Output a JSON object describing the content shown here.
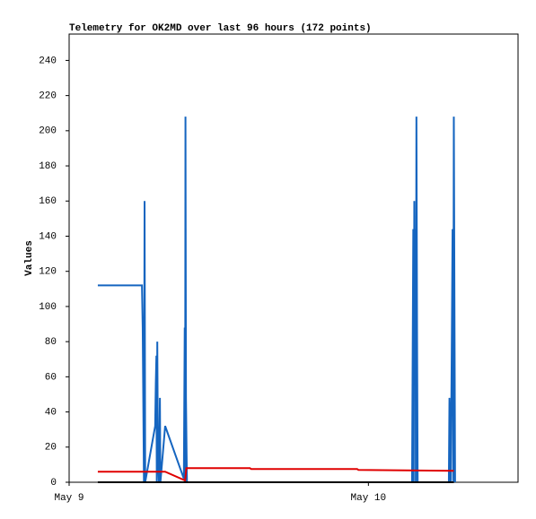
{
  "chart_data": {
    "type": "line",
    "title": "Telemetry for OK2MD over last 96 hours (172 points)",
    "y_label": "Values",
    "xlim": [
      0,
      36
    ],
    "xticks": [
      {
        "value": 0,
        "label": "May 9"
      },
      {
        "value": 24,
        "label": "May 10"
      }
    ],
    "ylim": [
      0,
      255
    ],
    "yticks": [
      0,
      20,
      40,
      60,
      80,
      100,
      120,
      140,
      160,
      180,
      200,
      220,
      240
    ],
    "grid": false,
    "series": [
      {
        "color": "#1565c0",
        "x": [
          2.3,
          5.84,
          5.9,
          6.0,
          6.05,
          6.1,
          6.9,
          6.95,
          7.0,
          7.03,
          7.07,
          7.12,
          7.2,
          7.28,
          7.32,
          7.7,
          9.2,
          9.27,
          9.3,
          9.33,
          9.37,
          9.42,
          9.45,
          null,
          27.5,
          27.55,
          27.6,
          27.63,
          27.68,
          27.72,
          27.78,
          27.8,
          27.85,
          27.9,
          27.95,
          null,
          30.45,
          30.5,
          30.55,
          30.6,
          30.68,
          30.75,
          30.8,
          30.85,
          30.9,
          30.95
        ],
        "values": [
          112,
          112,
          88,
          0,
          160,
          0,
          32,
          56,
          72,
          0,
          80,
          16,
          0,
          48,
          0,
          32,
          2,
          88,
          0,
          208,
          48,
          16,
          0,
          null,
          0,
          72,
          144,
          0,
          160,
          64,
          144,
          0,
          208,
          88,
          0,
          null,
          0,
          48,
          24,
          0,
          72,
          144,
          0,
          208,
          104,
          0
        ]
      },
      {
        "color": "#e00000",
        "x": [
          2.3,
          7.7,
          9.3,
          9.4,
          14.5,
          14.6,
          23.1,
          23.2,
          30.85
        ],
        "values": [
          6,
          6,
          1,
          8,
          8,
          7.5,
          7.5,
          7,
          6.5
        ]
      },
      {
        "color": "#000000",
        "x": [
          2.3,
          30.85
        ],
        "values": [
          0,
          0
        ]
      }
    ]
  }
}
